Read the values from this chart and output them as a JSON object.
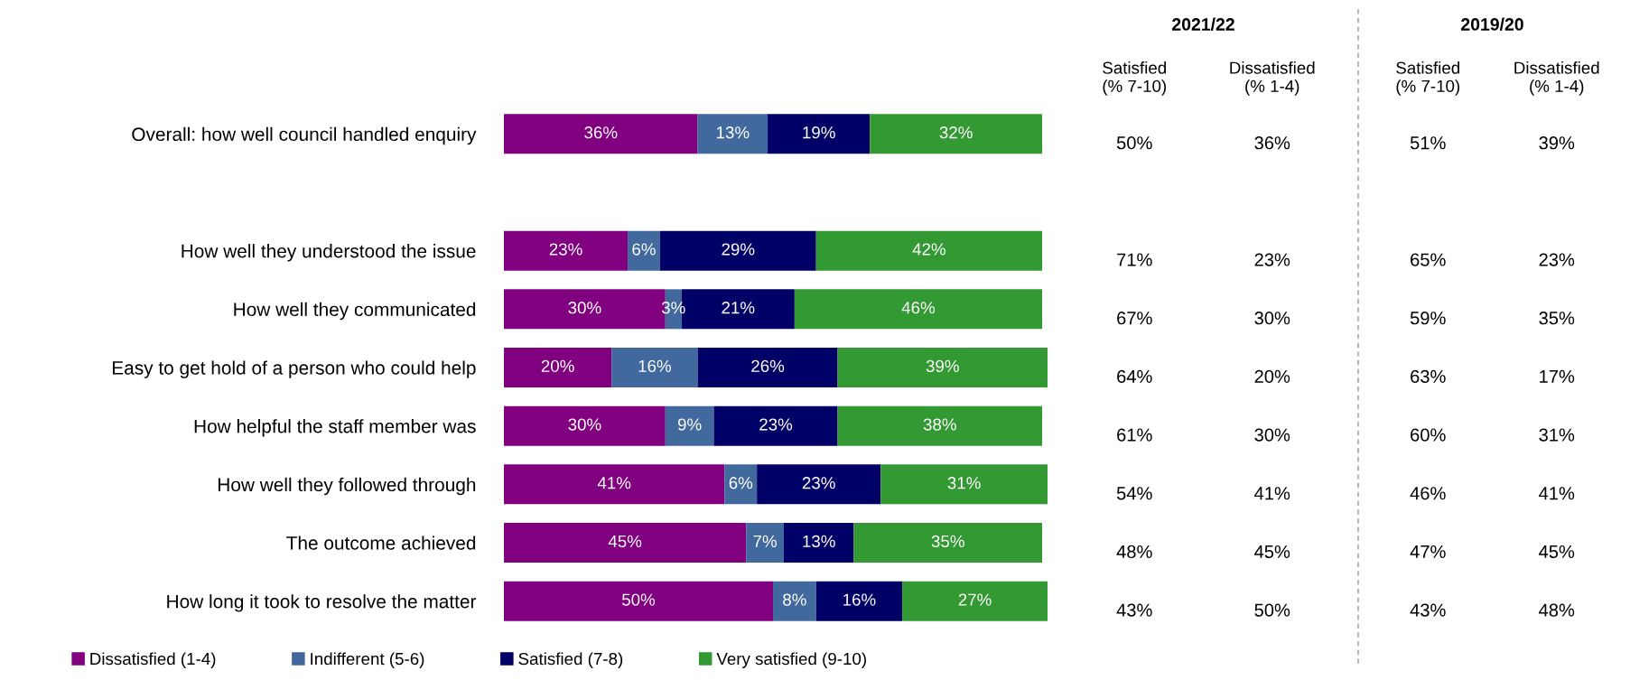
{
  "chart_data": [
    {
      "type": "bar",
      "orientation": "horizontal",
      "stacked": true,
      "tick_labels": "y",
      "legend": "bottom",
      "grid": false,
      "categories": [
        "Overall: how well council handled enquiry",
        null,
        "How well they understood the issue",
        "How well they communicated",
        "Easy to get hold of a person who could help",
        "How helpful the staff member was",
        "How well they followed through",
        "The outcome achieved",
        "How long it took to resolve the matter"
      ],
      "series": [
        {
          "name": "Dissatisfied (1-4)",
          "color": "#800080",
          "values": [
            36,
            null,
            23,
            30,
            20,
            30,
            41,
            45,
            50
          ],
          "value_labels": [
            "36%",
            null,
            "23%",
            "30%",
            "20%",
            "30%",
            "41%",
            "45%",
            "50%"
          ]
        },
        {
          "name": "Indifferent (5-6)",
          "color": "#41699e",
          "values": [
            13,
            null,
            6,
            3,
            16,
            9,
            6,
            7,
            8
          ],
          "value_labels": [
            "13%",
            null,
            "6%",
            "3%",
            "16%",
            "9%",
            "6%",
            "7%",
            "8%"
          ]
        },
        {
          "name": "Satisfied (7-8)",
          "color": "#000066",
          "values": [
            19,
            null,
            29,
            21,
            26,
            23,
            23,
            13,
            16
          ],
          "value_labels": [
            "19%",
            null,
            "29%",
            "21%",
            "26%",
            "23%",
            "23%",
            "13%",
            "16%"
          ]
        },
        {
          "name": "Very satisfied (9-10)",
          "color": "#339933",
          "values": [
            32,
            null,
            42,
            46,
            39,
            38,
            31,
            35,
            27
          ],
          "value_labels": [
            "32%",
            null,
            "42%",
            "46%",
            "39%",
            "38%",
            "31%",
            "35%",
            "27%"
          ]
        }
      ]
    },
    {
      "type": "other",
      "title": "2021/22",
      "annotations": [
        "Satisfied\n(% 7-10)",
        "Dissatisfied\n(% 1-4)",
        "50%",
        "36%",
        "71%",
        "23%",
        "67%",
        "30%",
        "64%",
        "20%",
        "61%",
        "30%",
        "54%",
        "41%",
        "48%",
        "45%",
        "43%",
        "50%"
      ]
    },
    {
      "type": "other",
      "title": "2019/20",
      "annotations": [
        "Satisfied\n(% 7-10)",
        "Dissatisfied\n(% 1-4)",
        "51%",
        "39%",
        "65%",
        "23%",
        "59%",
        "35%",
        "63%",
        "17%",
        "60%",
        "31%",
        "46%",
        "41%",
        "47%",
        "45%",
        "43%",
        "48%"
      ]
    }
  ]
}
